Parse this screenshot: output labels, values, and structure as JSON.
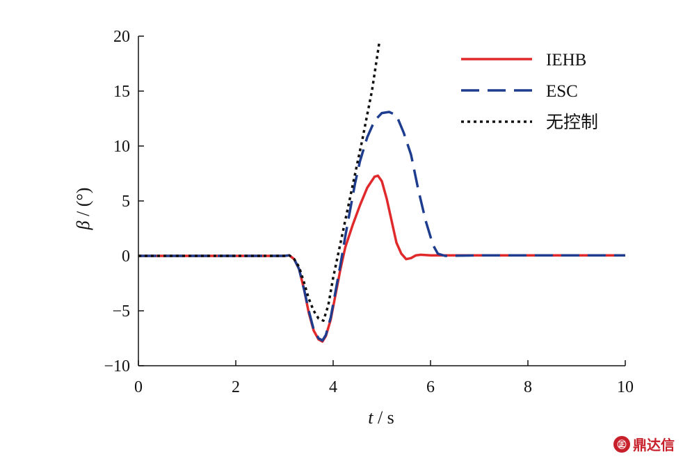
{
  "chart_data": {
    "type": "line",
    "xlabel": {
      "var": "t",
      "unit": " / s"
    },
    "ylabel": {
      "var": "β",
      "unit": " / (°)"
    },
    "xlim": [
      0,
      10
    ],
    "ylim": [
      -10,
      20
    ],
    "xticks": [
      0,
      2,
      4,
      6,
      8,
      10
    ],
    "xtick_labels": [
      "0",
      "2",
      "4",
      "6",
      "8",
      "10"
    ],
    "yticks": [
      -10,
      -5,
      0,
      5,
      10,
      15,
      20
    ],
    "ytick_labels": [
      "−10",
      "−5",
      "0",
      "5",
      "10",
      "15",
      "20"
    ],
    "grid": false,
    "legend_position": "top-right",
    "series": [
      {
        "name": "IEHB",
        "color": "#e0292b",
        "style": "solid",
        "points": [
          [
            0,
            0
          ],
          [
            3.0,
            0
          ],
          [
            3.1,
            0.05
          ],
          [
            3.2,
            -0.3
          ],
          [
            3.3,
            -1.2
          ],
          [
            3.4,
            -3.0
          ],
          [
            3.5,
            -5.2
          ],
          [
            3.6,
            -6.8
          ],
          [
            3.7,
            -7.6
          ],
          [
            3.78,
            -7.8
          ],
          [
            3.85,
            -7.3
          ],
          [
            3.95,
            -5.8
          ],
          [
            4.05,
            -3.5
          ],
          [
            4.15,
            -1.2
          ],
          [
            4.25,
            0.8
          ],
          [
            4.4,
            2.8
          ],
          [
            4.55,
            4.6
          ],
          [
            4.7,
            6.2
          ],
          [
            4.85,
            7.2
          ],
          [
            4.92,
            7.3
          ],
          [
            5.0,
            6.8
          ],
          [
            5.1,
            5.2
          ],
          [
            5.2,
            3.2
          ],
          [
            5.3,
            1.2
          ],
          [
            5.4,
            0.2
          ],
          [
            5.5,
            -0.3
          ],
          [
            5.6,
            -0.2
          ],
          [
            5.7,
            0.05
          ],
          [
            5.8,
            0.1
          ],
          [
            6.0,
            0.05
          ],
          [
            10,
            0.05
          ]
        ]
      },
      {
        "name": "ESC",
        "color": "#1f3d8f",
        "style": "dashed",
        "points": [
          [
            0,
            0
          ],
          [
            3.0,
            0
          ],
          [
            3.1,
            0.05
          ],
          [
            3.2,
            -0.3
          ],
          [
            3.3,
            -1.2
          ],
          [
            3.4,
            -3.0
          ],
          [
            3.5,
            -5.0
          ],
          [
            3.6,
            -6.7
          ],
          [
            3.7,
            -7.5
          ],
          [
            3.78,
            -7.7
          ],
          [
            3.85,
            -7.2
          ],
          [
            3.95,
            -5.6
          ],
          [
            4.05,
            -3.2
          ],
          [
            4.15,
            -0.8
          ],
          [
            4.25,
            1.8
          ],
          [
            4.35,
            4.2
          ],
          [
            4.45,
            6.6
          ],
          [
            4.55,
            8.6
          ],
          [
            4.7,
            10.8
          ],
          [
            4.85,
            12.3
          ],
          [
            5.0,
            13.0
          ],
          [
            5.15,
            13.1
          ],
          [
            5.3,
            12.8
          ],
          [
            5.45,
            11.2
          ],
          [
            5.6,
            9.2
          ],
          [
            5.75,
            6.0
          ],
          [
            5.9,
            3.2
          ],
          [
            6.05,
            1.0
          ],
          [
            6.15,
            0.2
          ],
          [
            6.3,
            0.0
          ],
          [
            7.0,
            0.05
          ],
          [
            10,
            0.05
          ]
        ]
      },
      {
        "name": "无控制",
        "color": "#111111",
        "style": "dotted",
        "points": [
          [
            0,
            0
          ],
          [
            3.0,
            0
          ],
          [
            3.1,
            0.05
          ],
          [
            3.2,
            -0.3
          ],
          [
            3.3,
            -1.0
          ],
          [
            3.4,
            -2.4
          ],
          [
            3.5,
            -3.9
          ],
          [
            3.6,
            -5.0
          ],
          [
            3.7,
            -5.7
          ],
          [
            3.8,
            -5.9
          ],
          [
            3.9,
            -4.5
          ],
          [
            4.0,
            -2.0
          ],
          [
            4.2,
            2.2
          ],
          [
            4.4,
            6.4
          ],
          [
            4.6,
            10.6
          ],
          [
            4.8,
            15.1
          ],
          [
            4.95,
            19.5
          ]
        ]
      }
    ]
  },
  "watermark": {
    "text": "鼎达信",
    "logo": "㊣"
  }
}
